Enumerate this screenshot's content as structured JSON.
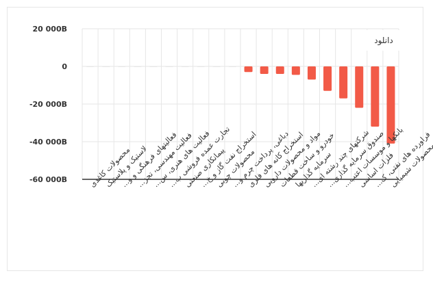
{
  "toolbar": {
    "download_label": "دانلود"
  },
  "colors": {
    "bar": "#f25a47",
    "grid": "#e6e6e6",
    "axis": "#333333",
    "text": "#333333"
  },
  "chart_data": {
    "type": "bar",
    "orientation": "vertical",
    "categories": [
      "محصولات کاغذی",
      "لاستیک و پلاستیک",
      "فعالیتهای فرهنگی و و...",
      "فعالیت مهندسی، تجز...",
      "فعالیت های هنری، س...",
      "تجارت عمده فروشی ب...",
      "پیمانکاری صنعتی",
      "استخراج نفت گاز و خ...",
      "محصولات چوبی",
      "دباغی، پرداخت چرم و...",
      "استخراج کانه های فلزی",
      "مواد و محصولات دارویی",
      "خودرو و ساخت قطعات",
      "سرمایه گذاریها",
      "شرکتهای چند رشته ای...",
      "صندوق سرمایه گذاری...",
      "بانکها و موسسات اعتب...",
      "فلزات اساسی",
      "فراورده های نفتی، ک...",
      "محصولات شیمیایی"
    ],
    "values": [
      0,
      0,
      0,
      0,
      0,
      0,
      0,
      0,
      0,
      0,
      -3000,
      -4000,
      -4000,
      -4500,
      -7000,
      -13000,
      -17000,
      -22000,
      -32000,
      -41000
    ],
    "ylim": [
      -60000,
      20000
    ],
    "yticks": [
      20000,
      0,
      -20000,
      -40000,
      -60000
    ],
    "ytick_labels": [
      "20 000B",
      "0",
      "-20 000B",
      "-40 000B",
      "-60 000B"
    ],
    "grid": true,
    "legend": "none"
  }
}
